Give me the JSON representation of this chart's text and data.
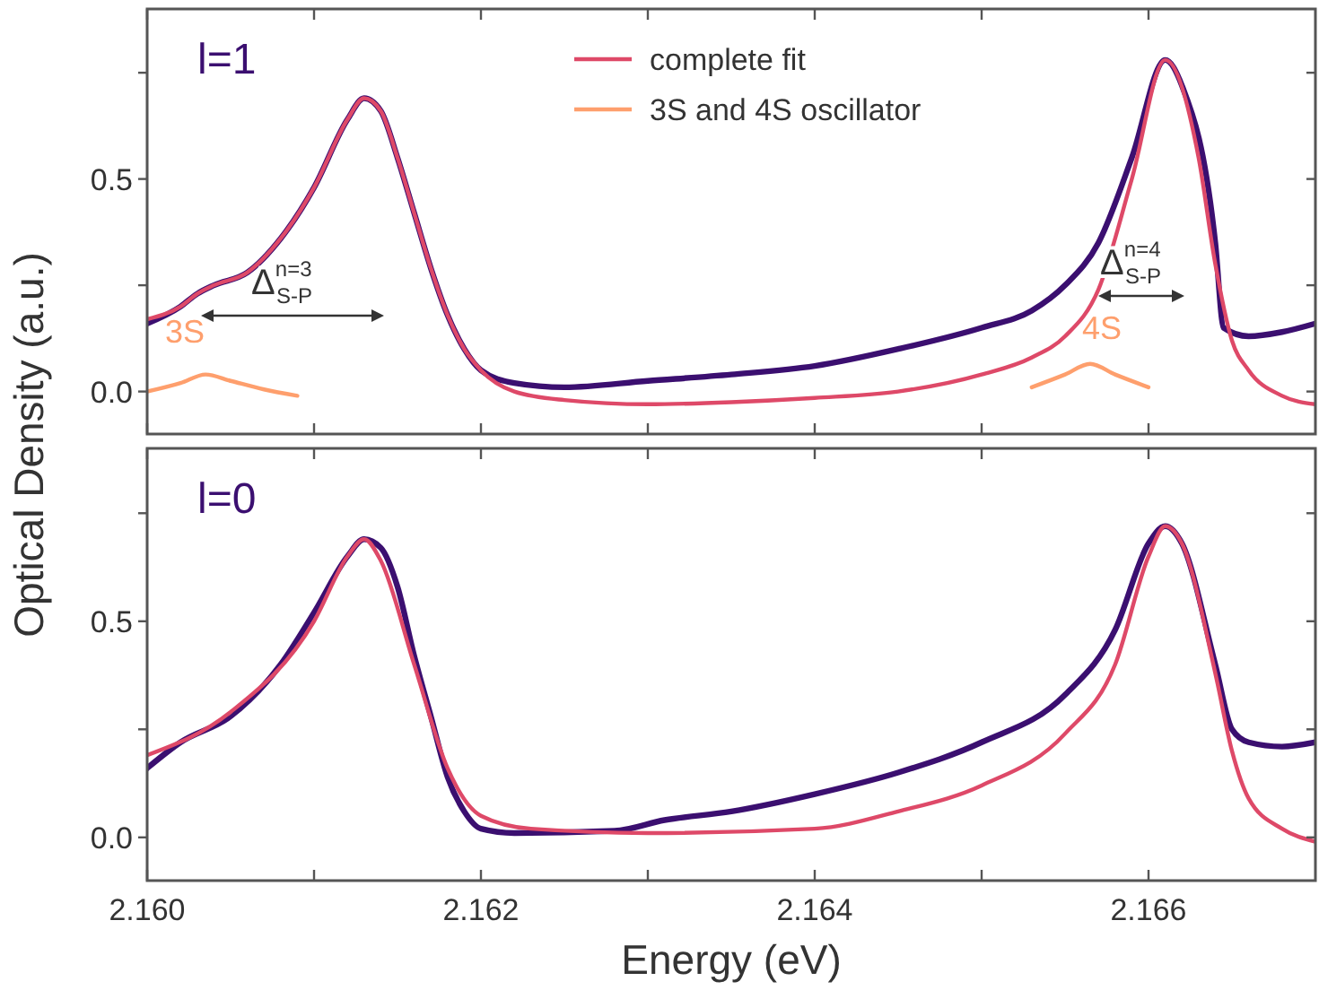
{
  "chart_data": [
    {
      "type": "line",
      "ylabel": "Optical Density (a.u.)",
      "xlim": [
        2.16,
        2.167
      ],
      "ylim": [
        -0.1,
        0.9
      ],
      "xticks": [
        {
          "value": 2.16,
          "label": null
        },
        {
          "value": 2.161,
          "label": null
        },
        {
          "value": 2.162,
          "label": null
        },
        {
          "value": 2.163,
          "label": null
        },
        {
          "value": 2.164,
          "label": null
        },
        {
          "value": 2.165,
          "label": null
        },
        {
          "value": 2.166,
          "label": null
        }
      ],
      "yticks": [
        {
          "value": 0,
          "label": "0.0"
        },
        {
          "value": 0.25,
          "label": null
        },
        0.5,
        {
          "value": 0.75,
          "label": null
        }
      ],
      "tick_labels": "y",
      "legend": "top",
      "grid": false,
      "line_style": "solid",
      "marker": "none",
      "annotations": [
        "l=1",
        "3S",
        "4S",
        "Δ$^{n=3}$$_{S-P}$",
        "Δ$^{n=4}$$_{S-P}$"
      ],
      "series": [
        {
          "color": "#3b0f70",
          "x": [
            2.16,
            2.1602,
            2.1603,
            2.1604,
            2.1606,
            2.1608,
            2.161,
            2.1612,
            2.1613,
            2.1614,
            2.1615,
            2.1616,
            2.1617,
            2.1618,
            2.1619,
            2.162,
            2.1622,
            2.1625,
            2.163,
            2.1635,
            2.164,
            2.1645,
            2.165,
            2.1653,
            2.1655,
            2.1657,
            2.1659,
            2.1661,
            2.1662,
            2.1664,
            2.16645,
            2.1666,
            2.1668,
            2.167
          ],
          "values": [
            0.16,
            0.2,
            0.23,
            0.25,
            0.28,
            0.36,
            0.48,
            0.64,
            0.69,
            0.66,
            0.55,
            0.42,
            0.29,
            0.18,
            0.1,
            0.05,
            0.02,
            0.01,
            0.025,
            0.04,
            0.06,
            0.1,
            0.15,
            0.19,
            0.25,
            0.35,
            0.55,
            0.78,
            0.72,
            0.35,
            0.15,
            0.13,
            0.14,
            0.16
          ]
        },
        {
          "name": "complete fit",
          "color": "#de4968",
          "x": [
            2.16,
            2.1602,
            2.1603,
            2.1604,
            2.1606,
            2.1608,
            2.161,
            2.1612,
            2.1613,
            2.1614,
            2.1615,
            2.1616,
            2.1617,
            2.1618,
            2.1619,
            2.162,
            2.1622,
            2.1625,
            2.163,
            2.1635,
            2.164,
            2.1645,
            2.165,
            2.1653,
            2.1655,
            2.1657,
            2.1659,
            2.1661,
            2.1663,
            2.1664,
            2.1665,
            2.1666,
            2.1668,
            2.167
          ],
          "values": [
            0.17,
            0.2,
            0.23,
            0.25,
            0.28,
            0.36,
            0.48,
            0.64,
            0.69,
            0.66,
            0.55,
            0.42,
            0.29,
            0.18,
            0.1,
            0.05,
            0.0,
            -0.02,
            -0.03,
            -0.025,
            -0.015,
            0.0,
            0.04,
            0.08,
            0.13,
            0.24,
            0.5,
            0.78,
            0.55,
            0.3,
            0.12,
            0.05,
            -0.01,
            -0.03
          ]
        },
        {
          "name": "3S and 4S oscillator",
          "color": "#fe9f6d",
          "x": [
            2.16,
            2.1602,
            2.16035,
            2.1605,
            2.1607,
            2.1609,
            2.1631,
            2.1653,
            2.1655,
            2.16565,
            2.1658,
            2.166
          ],
          "values": [
            0.0,
            0.02,
            0.04,
            0.025,
            0.005,
            -0.01,
            null,
            0.01,
            0.04,
            0.065,
            0.04,
            0.01
          ]
        }
      ]
    },
    {
      "type": "line",
      "xlabel": "Energy (eV)",
      "xlim": [
        2.16,
        2.167
      ],
      "ylim": [
        -0.1,
        0.9
      ],
      "xticks": [
        {
          "value": 2.16,
          "label": "2.160"
        },
        {
          "value": 2.161,
          "label": null
        },
        {
          "value": 2.162,
          "label": "2.162"
        },
        {
          "value": 2.163,
          "label": null
        },
        {
          "value": 2.164,
          "label": "2.164"
        },
        {
          "value": 2.165,
          "label": null
        },
        {
          "value": 2.166,
          "label": "2.166"
        }
      ],
      "yticks": [
        {
          "value": 0,
          "label": "0.0"
        },
        {
          "value": 0.25,
          "label": null
        },
        0.5,
        {
          "value": 0.75,
          "label": null
        }
      ],
      "grid": false,
      "line_style": "solid",
      "marker": "none",
      "annotations": [
        "l=0"
      ],
      "series": [
        {
          "color": "#3b0f70",
          "x": [
            2.16,
            2.1602,
            2.1605,
            2.1608,
            2.161,
            2.1612,
            2.1613,
            2.1614,
            2.1615,
            2.1616,
            2.1617,
            2.1618,
            2.1619,
            2.162,
            2.1622,
            2.1628,
            2.1631,
            2.1635,
            2.164,
            2.1645,
            2.165,
            2.1655,
            2.1658,
            2.166,
            2.1661,
            2.1662,
            2.1664,
            2.1665,
            2.1666,
            2.1668,
            2.167
          ],
          "values": [
            0.16,
            0.22,
            0.28,
            0.4,
            0.52,
            0.65,
            0.69,
            0.67,
            0.58,
            0.42,
            0.28,
            0.14,
            0.06,
            0.02,
            0.01,
            0.015,
            0.04,
            0.06,
            0.1,
            0.15,
            0.22,
            0.33,
            0.48,
            0.68,
            0.72,
            0.68,
            0.4,
            0.25,
            0.22,
            0.21,
            0.22
          ]
        },
        {
          "color": "#de4968",
          "x": [
            2.16,
            2.1605,
            2.161,
            2.1612,
            2.1613,
            2.1614,
            2.1616,
            2.1618,
            2.162,
            2.1623,
            2.163,
            2.164,
            2.1645,
            2.165,
            2.1655,
            2.1658,
            2.166,
            2.1661,
            2.1662,
            2.1664,
            2.1665,
            2.1666,
            2.1668,
            2.167
          ],
          "values": [
            0.19,
            0.29,
            0.5,
            0.65,
            0.69,
            0.64,
            0.4,
            0.16,
            0.05,
            0.02,
            0.01,
            0.02,
            0.06,
            0.12,
            0.24,
            0.4,
            0.65,
            0.72,
            0.68,
            0.38,
            0.2,
            0.09,
            0.02,
            -0.01
          ]
        }
      ]
    }
  ]
}
